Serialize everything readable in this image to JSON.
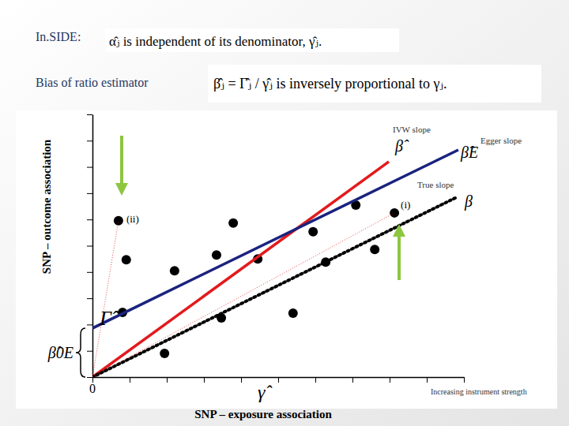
{
  "slide": {
    "heading": "In.SIDE:",
    "inside_text": "α̂ⱼ is independent of its denominator, γ̂ⱼ.",
    "bias_label": "Bias of ratio estimator",
    "bias_text": "β̂ⱼ = Γ̂ⱼ / γ̂ⱼ is inversely proportional to γⱼ."
  },
  "chart_data": {
    "type": "scatter",
    "x_label": "SNP – exposure association",
    "y_label": "SNP – outcome association",
    "xlim": [
      0,
      10
    ],
    "ylim": [
      0,
      10
    ],
    "xticks": [
      0,
      1,
      2,
      3,
      4,
      5,
      6,
      7,
      8,
      9,
      10
    ],
    "yticks": [
      0,
      1,
      2,
      3,
      4,
      5,
      6,
      7,
      8,
      9,
      10
    ],
    "tick_labels": false,
    "series": [
      {
        "type": "scatter",
        "color": "#000000",
        "marker": "circle",
        "x": [
          0.7,
          0.91,
          0.81,
          1.94,
          2.21,
          3.34,
          3.47,
          3.79,
          4.45,
          5.4,
          5.94,
          6.28,
          7.09,
          7.6,
          8.13
        ],
        "values": [
          5.95,
          4.47,
          2.46,
          0.9,
          4.05,
          4.65,
          2.25,
          5.86,
          4.5,
          2.43,
          5.53,
          4.38,
          6.55,
          4.86,
          6.25
        ]
      },
      {
        "name": "IVW slope",
        "type": "line",
        "color": "#e31a1c",
        "line_style": "solid",
        "x": [
          0,
          7.98
        ],
        "values": [
          0,
          8.2
        ]
      },
      {
        "name": "Egger slope",
        "type": "line",
        "color": "#1a237e",
        "line_style": "solid",
        "x": [
          0,
          9.85
        ],
        "values": [
          1.86,
          8.65
        ]
      },
      {
        "name": "True slope",
        "type": "line",
        "color": "#000000",
        "line_style": "dotted",
        "x": [
          0,
          9.81
        ],
        "values": [
          0,
          6.85
        ]
      },
      {
        "type": "line",
        "color": "#e31a1c",
        "line_style": "dotted",
        "x": [
          0,
          0.7
        ],
        "values": [
          0,
          5.95
        ]
      },
      {
        "type": "line",
        "color": "#e31a1c",
        "line_style": "dotted",
        "x": [
          0,
          8.13
        ],
        "values": [
          0,
          6.25
        ]
      }
    ],
    "annotations": {
      "point_i": "(i)",
      "point_ii": "(ii)",
      "intercept": "β̂0E",
      "y_symbol": "Γ̂",
      "x_symbol": "γ̂",
      "origin": "0",
      "strength": "Increasing instrument strength",
      "ivw_symbol": "β̂",
      "egger_symbol": "β̂E",
      "true_symbol": "β"
    }
  }
}
